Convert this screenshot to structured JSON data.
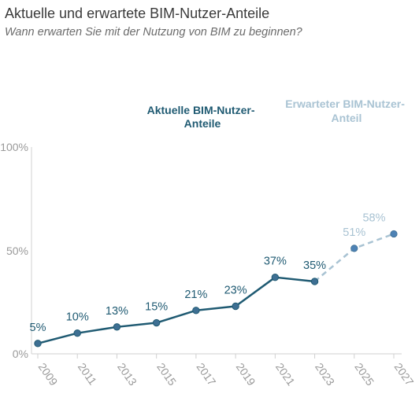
{
  "chart_data": {
    "type": "line",
    "title": "Aktuelle und erwartete BIM-Nutzer-Anteile",
    "subtitle": "Wann erwarten Sie mit der Nutzung von BIM zu beginnen?",
    "x": [
      "2009",
      "2011",
      "2013",
      "2015",
      "2017",
      "2019",
      "2021",
      "2023",
      "2025",
      "2027"
    ],
    "ylim": [
      0,
      100
    ],
    "yticks": [
      "0%",
      "50%",
      "100%"
    ],
    "series": [
      {
        "name_lines": [
          "Aktuelle BIM-Nutzer-",
          "Anteile"
        ],
        "color": "#1f5a72",
        "style": "solid",
        "x": [
          "2009",
          "2011",
          "2013",
          "2015",
          "2017",
          "2019",
          "2021",
          "2023"
        ],
        "values": [
          5,
          10,
          13,
          15,
          21,
          23,
          37,
          35
        ],
        "labels": [
          "5%",
          "10%",
          "13%",
          "15%",
          "21%",
          "23%",
          "37%",
          "35%"
        ]
      },
      {
        "name_lines": [
          "Erwarteter BIM-Nutzer-",
          "Anteil"
        ],
        "color": "#a9c3d3",
        "style": "dashed",
        "x": [
          "2023",
          "2025",
          "2027"
        ],
        "values": [
          35,
          51,
          58
        ],
        "labels": [
          "51%",
          "58%"
        ]
      }
    ]
  }
}
